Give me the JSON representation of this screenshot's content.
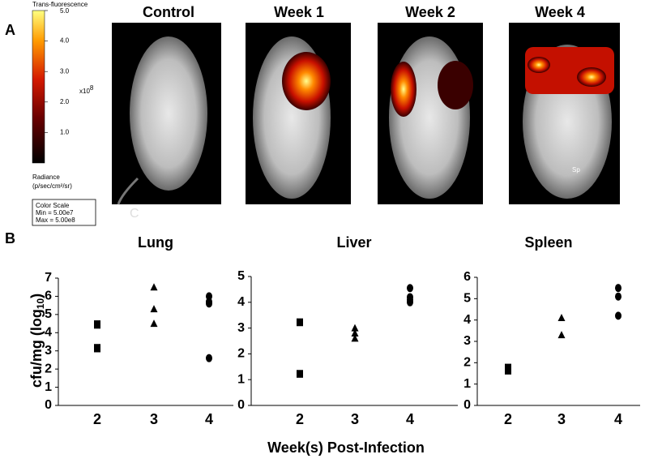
{
  "panel_a": {
    "label": "A",
    "titles": [
      "Control",
      "Week 1",
      "Week 2",
      "Week 4"
    ],
    "image_texts": [
      "Sp",
      "C"
    ],
    "color_scale": {
      "title": "Trans-fluorescence",
      "range": [
        0,
        5
      ],
      "ticks": [
        {
          "value": 1,
          "label": "1.0"
        },
        {
          "value": 2,
          "label": "2.0"
        },
        {
          "value": 3,
          "label": "3.0"
        },
        {
          "value": 4,
          "label": "4.0"
        },
        {
          "value": 5,
          "label": "5.0"
        }
      ],
      "multiplier": [
        "x10",
        "8"
      ],
      "unit": [
        "Radiance",
        "(p/sec/cm²/sr)"
      ],
      "box": [
        "Color Scale",
        "Min = 5.00e7",
        "Max = 5.00e8"
      ]
    }
  },
  "panel_b": {
    "label": "B",
    "y_label": [
      "cfu/mg (log",
      "10",
      ")"
    ],
    "x_label": "Week(s) Post-Infection"
  },
  "chart_data": [
    {
      "type": "scatter",
      "title": "Lung",
      "categories": [
        2,
        3,
        4
      ],
      "markers": [
        "square",
        "triangle",
        "circle"
      ],
      "groups": [
        [
          4.5,
          4.4,
          3.2,
          3.1
        ],
        [
          6.5,
          5.3,
          4.5
        ],
        [
          6.0,
          5.7,
          5.6,
          2.6
        ]
      ],
      "ylim": [
        0,
        7
      ],
      "yticks": [
        0,
        1,
        2,
        3,
        4,
        5,
        6,
        7
      ],
      "color": "#000000"
    },
    {
      "type": "scatter",
      "title": "Liver",
      "categories": [
        2,
        3,
        4
      ],
      "markers": [
        "square",
        "triangle",
        "circle"
      ],
      "groups": [
        [
          3.25,
          3.2,
          1.25,
          1.2
        ],
        [
          3.0,
          2.8,
          2.6
        ],
        [
          4.55,
          4.2,
          4.1,
          4.0
        ]
      ],
      "ylim": [
        0,
        5
      ],
      "yticks": [
        0,
        1,
        2,
        3,
        4,
        5
      ],
      "color": "#000000"
    },
    {
      "type": "scatter",
      "title": "Spleen",
      "categories": [
        2,
        3,
        4
      ],
      "markers": [
        "square",
        "triangle",
        "circle"
      ],
      "groups": [
        [
          1.8,
          1.7,
          1.6
        ],
        [
          4.1,
          3.3
        ],
        [
          5.5,
          5.1,
          4.2
        ]
      ],
      "ylim": [
        0,
        6
      ],
      "yticks": [
        0,
        1,
        2,
        3,
        4,
        5,
        6
      ],
      "color": "#000000"
    }
  ]
}
